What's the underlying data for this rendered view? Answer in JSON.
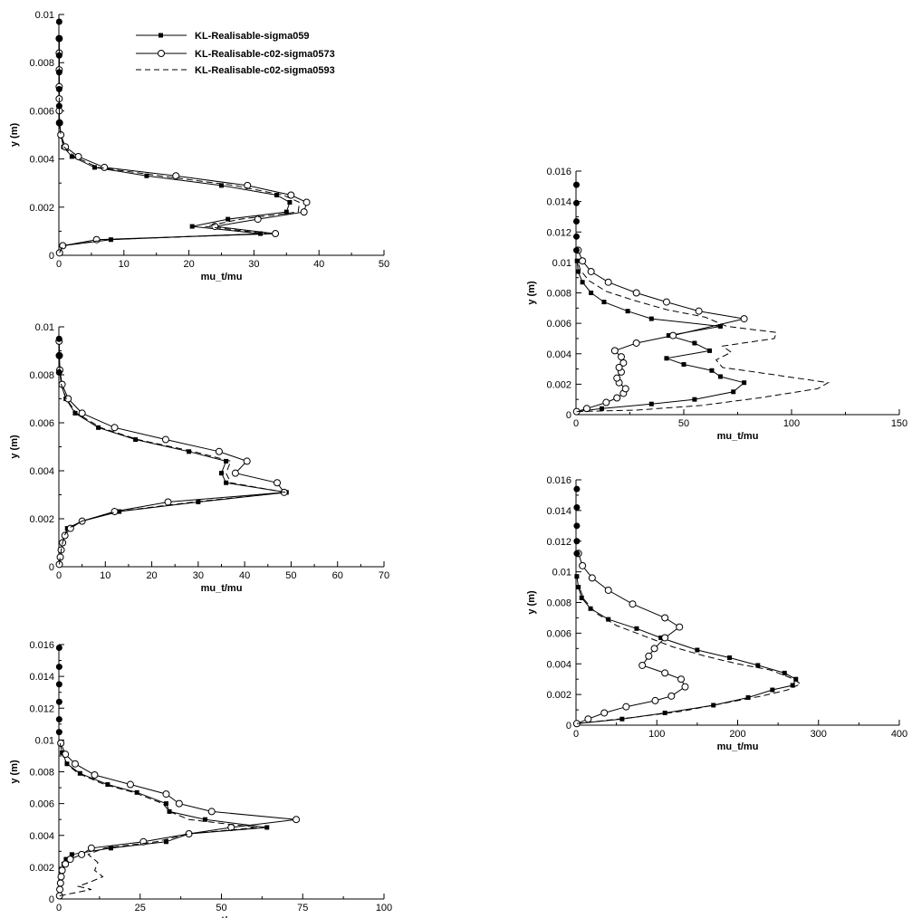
{
  "legend": {
    "entries": [
      {
        "label": "KL-Realisable-sigma059",
        "style": "solid-square"
      },
      {
        "label": "KL-Realisable-c02-sigma0573",
        "style": "solid-circle"
      },
      {
        "label": "KL-Realisable-c02-sigma0593",
        "style": "dashed"
      }
    ]
  },
  "chart_data": [
    {
      "type": "line",
      "xlabel": "mu_t/mu",
      "ylabel": "y (m)",
      "xlim": [
        0,
        50
      ],
      "ylim": [
        0,
        0.01
      ],
      "xticks": [
        0,
        10,
        20,
        30,
        40,
        50
      ],
      "xtick_labels": [
        "0",
        "10",
        "20",
        "30",
        "40",
        "50"
      ],
      "yticks": [
        0,
        0.002,
        0.004,
        0.006,
        0.008,
        0.01
      ],
      "ytick_labels": [
        "0",
        "0.002",
        "0.004",
        "0.006",
        "0.008",
        "0.01"
      ],
      "series": [
        {
          "name": "KL-Realisable-sigma059",
          "x": [
            0.1,
            0.6,
            8,
            31,
            20.5,
            26,
            35,
            35.5,
            33.5,
            25,
            13.5,
            5.5,
            2,
            0.7,
            0.3,
            0.1,
            0.05,
            0.05,
            0.05,
            0.05,
            0.05,
            0.05
          ],
          "y": [
            0.0001,
            0.0004,
            0.00065,
            0.0009,
            0.0012,
            0.0015,
            0.0018,
            0.0022,
            0.0025,
            0.0029,
            0.0033,
            0.00365,
            0.0041,
            0.0045,
            0.005,
            0.0055,
            0.006,
            0.0065,
            0.007,
            0.0077,
            0.0084,
            0.009
          ]
        },
        {
          "name": "KL-Realisable-c02-sigma0573",
          "x": [
            0.1,
            0.6,
            5.8,
            33.3,
            24,
            30.6,
            37.7,
            38.1,
            35.7,
            29,
            18,
            7,
            3,
            1,
            0.3,
            0.1,
            0.05,
            0.05,
            0.05,
            0.05,
            0.05,
            0.05
          ],
          "y": [
            0.0001,
            0.0004,
            0.00065,
            0.0009,
            0.0012,
            0.0015,
            0.0018,
            0.0022,
            0.0025,
            0.0029,
            0.0033,
            0.00365,
            0.0041,
            0.0045,
            0.005,
            0.0055,
            0.006,
            0.0065,
            0.007,
            0.0077,
            0.0084,
            0.009
          ]
        },
        {
          "name": "KL-Realisable-c02-sigma0593",
          "x": [
            0.1,
            0.6,
            7.5,
            32,
            22.5,
            28,
            36.8,
            37,
            34.5,
            27,
            15.5,
            6,
            2.4,
            0.8,
            0.3,
            0.1,
            0.05,
            0.05,
            0.05,
            0.05,
            0.05,
            0.05
          ],
          "y": [
            0.0001,
            0.0004,
            0.00065,
            0.0009,
            0.0012,
            0.0015,
            0.0018,
            0.0022,
            0.0025,
            0.0029,
            0.0033,
            0.00365,
            0.0041,
            0.0045,
            0.005,
            0.0055,
            0.006,
            0.0065,
            0.007,
            0.0077,
            0.0084,
            0.009
          ]
        }
      ],
      "marker_points": {
        "x": [
          0.05,
          0.05,
          0.05,
          0.05,
          0.05,
          0.05,
          0.05
        ],
        "y": [
          0.0097,
          0.009,
          0.0083,
          0.0076,
          0.0069,
          0.0062,
          0.0055
        ]
      }
    },
    {
      "type": "line",
      "xlabel": "mu_t/mu",
      "ylabel": "y (m)",
      "xlim": [
        0,
        70
      ],
      "ylim": [
        0,
        0.01
      ],
      "xticks": [
        0,
        10,
        20,
        30,
        40,
        50,
        60,
        70
      ],
      "xtick_labels": [
        "0",
        "10",
        "20",
        "30",
        "40",
        "50",
        "60",
        "70"
      ],
      "yticks": [
        0,
        0.002,
        0.004,
        0.006,
        0.008,
        0.01
      ],
      "ytick_labels": [
        "0",
        "0.002",
        "0.004",
        "0.006",
        "0.008",
        "0.01"
      ],
      "series": [
        {
          "name": "KL-Realisable-sigma059",
          "x": [
            0.1,
            0.3,
            0.5,
            0.8,
            1.2,
            1.8,
            5,
            13,
            30,
            49,
            36,
            35,
            36,
            28,
            16.5,
            8.5,
            3.5,
            1.5,
            0.5,
            0.2,
            0.1,
            0.05
          ],
          "y": [
            0.0001,
            0.0004,
            0.0007,
            0.001,
            0.0013,
            0.0016,
            0.0019,
            0.0023,
            0.0027,
            0.0031,
            0.0035,
            0.0039,
            0.0044,
            0.0048,
            0.0053,
            0.0058,
            0.0064,
            0.007,
            0.0076,
            0.0082,
            0.0088,
            0.0094
          ]
        },
        {
          "name": "KL-Realisable-c02-sigma0573",
          "x": [
            0.1,
            0.3,
            0.5,
            0.8,
            1.3,
            2.5,
            5,
            12,
            23.5,
            48.5,
            47,
            38,
            40.5,
            34.5,
            23,
            12,
            5,
            2,
            0.7,
            0.2,
            0.1,
            0.05
          ],
          "y": [
            0.0001,
            0.0004,
            0.0007,
            0.001,
            0.0013,
            0.0016,
            0.0019,
            0.0023,
            0.0027,
            0.0031,
            0.0035,
            0.0039,
            0.0044,
            0.0048,
            0.0053,
            0.0058,
            0.0064,
            0.007,
            0.0076,
            0.0082,
            0.0088,
            0.0094
          ]
        },
        {
          "name": "KL-Realisable-c02-sigma0593",
          "x": [
            0.1,
            0.3,
            0.5,
            0.8,
            1.2,
            2,
            5,
            12.5,
            29,
            48.8,
            37,
            36,
            37,
            29,
            17,
            9,
            3.8,
            1.6,
            0.5,
            0.2,
            0.1,
            0.05
          ],
          "y": [
            0.0001,
            0.0004,
            0.0007,
            0.001,
            0.0013,
            0.0016,
            0.0019,
            0.0023,
            0.0027,
            0.0031,
            0.0035,
            0.0039,
            0.0044,
            0.0048,
            0.0053,
            0.0058,
            0.0064,
            0.007,
            0.0076,
            0.0082,
            0.0088,
            0.0094
          ]
        }
      ],
      "marker_points": {
        "x": [
          0.05,
          0.05,
          0.05
        ],
        "y": [
          0.0095,
          0.0088,
          0.0081
        ]
      }
    },
    {
      "type": "line",
      "xlabel": "mu_t/mu",
      "ylabel": "y (m)",
      "xlim": [
        0,
        100
      ],
      "ylim": [
        0,
        0.016
      ],
      "xticks": [
        0,
        25,
        50,
        75,
        100
      ],
      "xtick_labels": [
        "0",
        "25",
        "50",
        "75",
        "100"
      ],
      "yticks": [
        0,
        0.002,
        0.004,
        0.006,
        0.008,
        0.01,
        0.012,
        0.014,
        0.016
      ],
      "ytick_labels": [
        "0",
        "0.002",
        "0.004",
        "0.006",
        "0.008",
        "0.01",
        "0.012",
        "0.014",
        "0.016"
      ],
      "series": [
        {
          "name": "KL-Realisable-sigma059",
          "x": [
            0.2,
            0.3,
            0.5,
            0.7,
            1,
            1.5,
            2.2,
            4,
            16,
            33,
            40,
            64,
            45,
            34,
            33,
            24,
            15,
            6.5,
            2.5,
            1,
            0.4
          ],
          "y": [
            0.0002,
            0.0006,
            0.001,
            0.0014,
            0.0018,
            0.0022,
            0.0025,
            0.0028,
            0.0032,
            0.0036,
            0.0041,
            0.0045,
            0.005,
            0.0055,
            0.006,
            0.0067,
            0.0072,
            0.0079,
            0.0085,
            0.0092,
            0.0098
          ]
        },
        {
          "name": "KL-Realisable-c02-sigma0573",
          "x": [
            0.2,
            0.3,
            0.5,
            0.7,
            1,
            2,
            3.5,
            7,
            10,
            26,
            40,
            53,
            73,
            47,
            37,
            33,
            22,
            11,
            5,
            2,
            0.6
          ],
          "y": [
            0.0002,
            0.0006,
            0.001,
            0.0014,
            0.0018,
            0.0022,
            0.0025,
            0.0028,
            0.0032,
            0.0036,
            0.0041,
            0.0045,
            0.005,
            0.0055,
            0.006,
            0.0066,
            0.0072,
            0.0078,
            0.0085,
            0.0091,
            0.0098
          ]
        },
        {
          "name": "KL-Realisable-c02-sigma0593",
          "x": [
            0.2,
            10,
            6,
            10,
            13.5,
            11,
            12,
            9,
            14,
            30,
            40,
            61,
            40,
            34,
            32,
            23,
            14,
            6,
            2.3,
            0.9,
            0.4
          ],
          "y": [
            0.0002,
            0.0006,
            0.0008,
            0.0011,
            0.0014,
            0.0018,
            0.0023,
            0.0028,
            0.0032,
            0.0036,
            0.0041,
            0.0045,
            0.005,
            0.0055,
            0.006,
            0.0067,
            0.0072,
            0.0079,
            0.0085,
            0.0092,
            0.0098
          ]
        }
      ],
      "marker_points": {
        "x": [
          0.1,
          0.1,
          0.1,
          0.1,
          0.1,
          0.1
        ],
        "y": [
          0.0158,
          0.0146,
          0.0135,
          0.0124,
          0.0113,
          0.0105
        ]
      }
    },
    {
      "type": "line",
      "xlabel": "mu_t/mu",
      "ylabel": "y (m)",
      "xlim": [
        0,
        150
      ],
      "ylim": [
        0,
        0.016
      ],
      "xticks": [
        0,
        50,
        100,
        150
      ],
      "xtick_labels": [
        "0",
        "50",
        "100",
        "150"
      ],
      "yticks": [
        0,
        0.002,
        0.004,
        0.006,
        0.008,
        0.01,
        0.012,
        0.014,
        0.016
      ],
      "ytick_labels": [
        "0",
        "0.002",
        "0.004",
        "0.006",
        "0.008",
        "0.01",
        "0.012",
        "0.014",
        "0.016"
      ],
      "series": [
        {
          "name": "KL-Realisable-sigma059",
          "x": [
            0.3,
            12,
            35,
            55,
            73,
            78,
            67,
            63,
            50,
            42,
            62,
            55,
            43,
            67,
            35,
            24,
            13,
            7,
            3,
            1,
            0.5
          ],
          "y": [
            0.0002,
            0.0004,
            0.0007,
            0.001,
            0.0015,
            0.0021,
            0.0025,
            0.0029,
            0.0033,
            0.0037,
            0.0042,
            0.0047,
            0.0052,
            0.0058,
            0.0063,
            0.0068,
            0.0074,
            0.008,
            0.0087,
            0.0094,
            0.0101
          ]
        },
        {
          "name": "KL-Realisable-c02-sigma0573",
          "x": [
            0.3,
            5,
            14,
            19,
            22,
            23,
            20,
            19,
            21,
            20,
            22,
            21,
            18,
            28,
            45,
            78,
            57,
            42,
            28,
            15,
            7,
            3,
            1
          ],
          "y": [
            0.0002,
            0.0004,
            0.0008,
            0.0011,
            0.0014,
            0.0017,
            0.0021,
            0.0024,
            0.0028,
            0.0031,
            0.0034,
            0.0038,
            0.0042,
            0.0047,
            0.0052,
            0.0063,
            0.0068,
            0.0074,
            0.008,
            0.0087,
            0.0094,
            0.0101,
            0.0108
          ]
        },
        {
          "name": "KL-Realisable-c02-sigma0593",
          "x": [
            0.3,
            28,
            58,
            85,
            112,
            117,
            88,
            68,
            65,
            72,
            68,
            92,
            93,
            70,
            60,
            42,
            27,
            14,
            6,
            2,
            0.5
          ],
          "y": [
            0.0002,
            0.0003,
            0.0006,
            0.0011,
            0.0017,
            0.0021,
            0.0027,
            0.0031,
            0.0036,
            0.0041,
            0.0045,
            0.005,
            0.0054,
            0.0058,
            0.0064,
            0.0069,
            0.0075,
            0.0081,
            0.0088,
            0.0095,
            0.0102
          ]
        }
      ],
      "marker_points": {
        "x": [
          0.2,
          0.2,
          0.2,
          0.2,
          0.2
        ],
        "y": [
          0.0151,
          0.0139,
          0.0127,
          0.0117,
          0.0108
        ]
      }
    },
    {
      "type": "line",
      "xlabel": "mu_t/mu",
      "ylabel": "y (m)",
      "xlim": [
        0,
        400
      ],
      "ylim": [
        0,
        0.016
      ],
      "xticks": [
        0,
        100,
        200,
        300,
        400
      ],
      "xtick_labels": [
        "0",
        "100",
        "200",
        "300",
        "400"
      ],
      "yticks": [
        0,
        0.002,
        0.004,
        0.006,
        0.008,
        0.01,
        0.012,
        0.014,
        0.016
      ],
      "ytick_labels": [
        "0",
        "0.002",
        "0.004",
        "0.006",
        "0.008",
        "0.01",
        "0.012",
        "0.014",
        "0.016"
      ],
      "series": [
        {
          "name": "KL-Realisable-sigma059",
          "x": [
            1,
            57,
            110,
            170,
            213,
            243,
            268,
            272,
            258,
            225,
            190,
            150,
            105,
            75,
            40,
            18,
            7,
            3,
            1
          ],
          "y": [
            0.0001,
            0.0004,
            0.0008,
            0.0013,
            0.0018,
            0.0023,
            0.0026,
            0.003,
            0.0034,
            0.0039,
            0.0044,
            0.0049,
            0.0057,
            0.0063,
            0.0069,
            0.0076,
            0.0083,
            0.009,
            0.0097
          ]
        },
        {
          "name": "KL-Realisable-c02-sigma0573",
          "x": [
            1,
            15,
            35,
            62,
            98,
            118,
            135,
            130,
            110,
            82,
            90,
            97,
            110,
            128,
            110,
            70,
            40,
            20,
            8,
            3
          ],
          "y": [
            0.0001,
            0.0004,
            0.0008,
            0.0012,
            0.0016,
            0.0019,
            0.0025,
            0.003,
            0.0034,
            0.0039,
            0.0045,
            0.005,
            0.0057,
            0.0064,
            0.007,
            0.0079,
            0.0088,
            0.0096,
            0.0104,
            0.0112
          ]
        },
        {
          "name": "KL-Realisable-c02-sigma0593",
          "x": [
            1,
            70,
            130,
            180,
            230,
            262,
            278,
            265,
            240,
            200,
            160,
            120,
            85,
            50,
            25,
            10,
            4
          ],
          "y": [
            0.0001,
            0.0005,
            0.0009,
            0.0014,
            0.0019,
            0.0023,
            0.0027,
            0.0031,
            0.0036,
            0.004,
            0.0045,
            0.0051,
            0.0058,
            0.0065,
            0.0073,
            0.0082,
            0.009
          ]
        }
      ],
      "marker_points": {
        "x": [
          1,
          1,
          1,
          1,
          1
        ],
        "y": [
          0.0154,
          0.0142,
          0.013,
          0.012,
          0.0112
        ]
      }
    }
  ]
}
